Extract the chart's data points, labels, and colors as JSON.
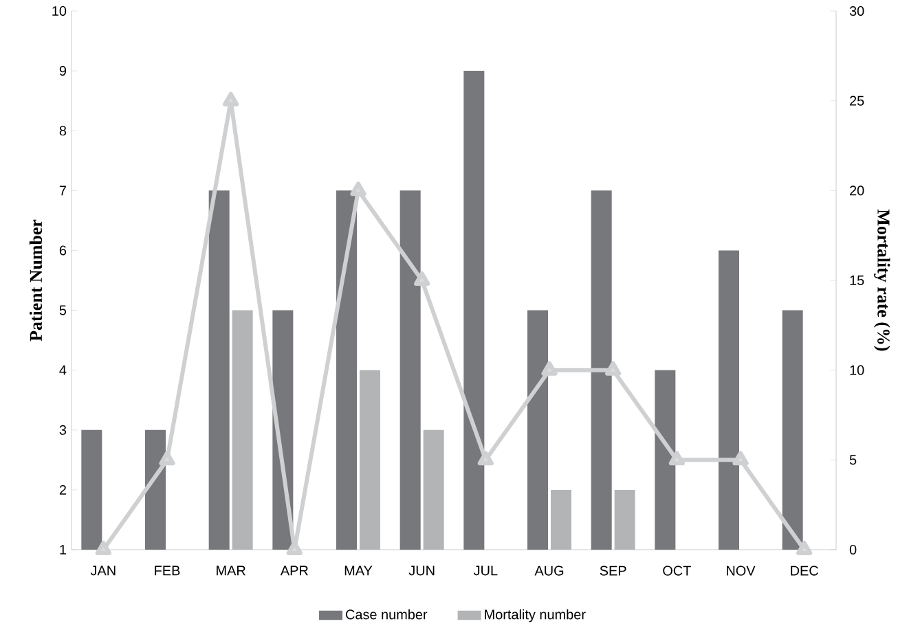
{
  "chart_data": {
    "type": "bar",
    "ylabel": "Patient Number",
    "y2label": "Mortality rate (%)",
    "categories": [
      "JAN",
      "FEB",
      "MAR",
      "APR",
      "MAY",
      "JUN",
      "JUL",
      "AUG",
      "SEP",
      "OCT",
      "NOV",
      "DEC"
    ],
    "series": [
      {
        "name": "Case number",
        "color": "#77787b",
        "values": [
          3,
          3,
          7,
          5,
          7,
          7,
          9,
          5,
          7,
          4,
          6,
          5
        ]
      },
      {
        "name": "Mortality number",
        "color": "#b3b4b6",
        "values": [
          null,
          null,
          5,
          null,
          4,
          3,
          null,
          2,
          2,
          null,
          null,
          null
        ]
      },
      {
        "type": "line",
        "axis": "y2",
        "color": "#cfd0d2",
        "marker": "triangle",
        "line_style": "solid",
        "values": [
          0,
          5,
          25,
          0,
          20,
          15,
          5,
          10,
          10,
          5,
          5,
          0
        ]
      }
    ],
    "ylim": [
      1,
      10
    ],
    "yticks": [
      1,
      2,
      3,
      4,
      5,
      6,
      7,
      8,
      9,
      10
    ],
    "y2lim": [
      0,
      30
    ],
    "y2ticks": [
      0,
      5,
      10,
      15,
      20,
      25,
      30
    ],
    "grid": false,
    "legend": "bottom"
  }
}
